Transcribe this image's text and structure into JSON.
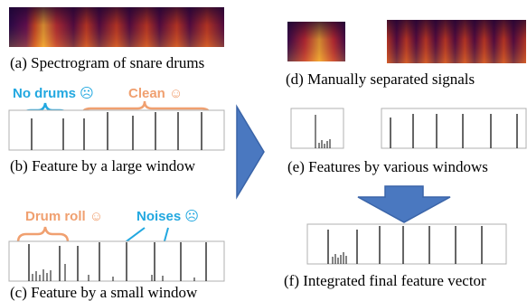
{
  "captions": {
    "a": "(a) Spectrogram of snare drums",
    "b": "(b) Feature by a large window",
    "c": "(c) Feature by a small window",
    "d": "(d) Manually separated signals",
    "e": "(e) Features by various windows",
    "f": "(f) Integrated final feature vector"
  },
  "annotations": {
    "no_drums": "No drums ☹",
    "clean": "Clean ☺",
    "drum_roll": "Drum roll ☺",
    "noises": "Noises ☹"
  },
  "colors": {
    "blue_note": "#22a8e0",
    "orange_note": "#f0a070",
    "arrow_fill": "#4a78c0",
    "arrow_stroke": "#3a64a8"
  }
}
